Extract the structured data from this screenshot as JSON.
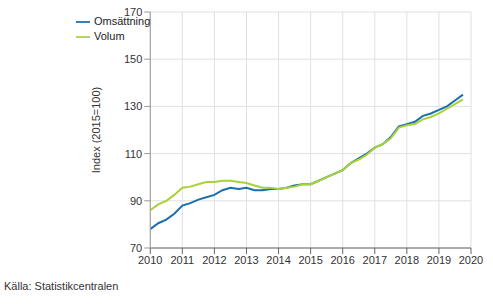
{
  "chart_data": {
    "type": "line",
    "y_label": "Index (2015=100)",
    "source": "Källa: Statistikcentralen",
    "x": [
      2010.0,
      2010.25,
      2010.5,
      2010.75,
      2011.0,
      2011.25,
      2011.5,
      2011.75,
      2012.0,
      2012.25,
      2012.5,
      2012.75,
      2013.0,
      2013.25,
      2013.5,
      2013.75,
      2014.0,
      2014.25,
      2014.5,
      2014.75,
      2015.0,
      2015.25,
      2015.5,
      2015.75,
      2016.0,
      2016.25,
      2016.5,
      2016.75,
      2017.0,
      2017.25,
      2017.5,
      2017.75,
      2018.0,
      2018.25,
      2018.5,
      2018.75,
      2019.0,
      2019.25,
      2019.5,
      2019.75
    ],
    "series": [
      {
        "name": "Omsättning",
        "color": "#1b6fae",
        "values": [
          78,
          80.5,
          82,
          84.5,
          88,
          89,
          90.5,
          91.5,
          92.5,
          94.5,
          95.5,
          95,
          95.5,
          94.5,
          94.5,
          95,
          95,
          95.5,
          96.5,
          97,
          97,
          98.5,
          100,
          101.5,
          103,
          106,
          108,
          110,
          112.5,
          114,
          117,
          121.5,
          122.5,
          123.5,
          126,
          127,
          128.5,
          130,
          132.5,
          135
        ]
      },
      {
        "name": "Volum",
        "color": "#a9d13c",
        "values": [
          86,
          88.5,
          90,
          92.5,
          95.5,
          96,
          97,
          98,
          98,
          98.5,
          98.5,
          98,
          97.5,
          96.5,
          95.5,
          95.5,
          95,
          95.5,
          96,
          97,
          97,
          98.5,
          100,
          101.5,
          103,
          106,
          107.5,
          109.5,
          112.5,
          114,
          116.5,
          121,
          122,
          122.5,
          124.5,
          125.5,
          127,
          129,
          131,
          133
        ]
      }
    ],
    "xlim": [
      2010,
      2020
    ],
    "xticks": [
      2010,
      2011,
      2012,
      2013,
      2014,
      2015,
      2016,
      2017,
      2018,
      2019,
      2020
    ],
    "ylim": [
      70,
      170
    ],
    "yticks": [
      70,
      90,
      110,
      130,
      150,
      170
    ],
    "grid": true,
    "legend": "top-left"
  }
}
